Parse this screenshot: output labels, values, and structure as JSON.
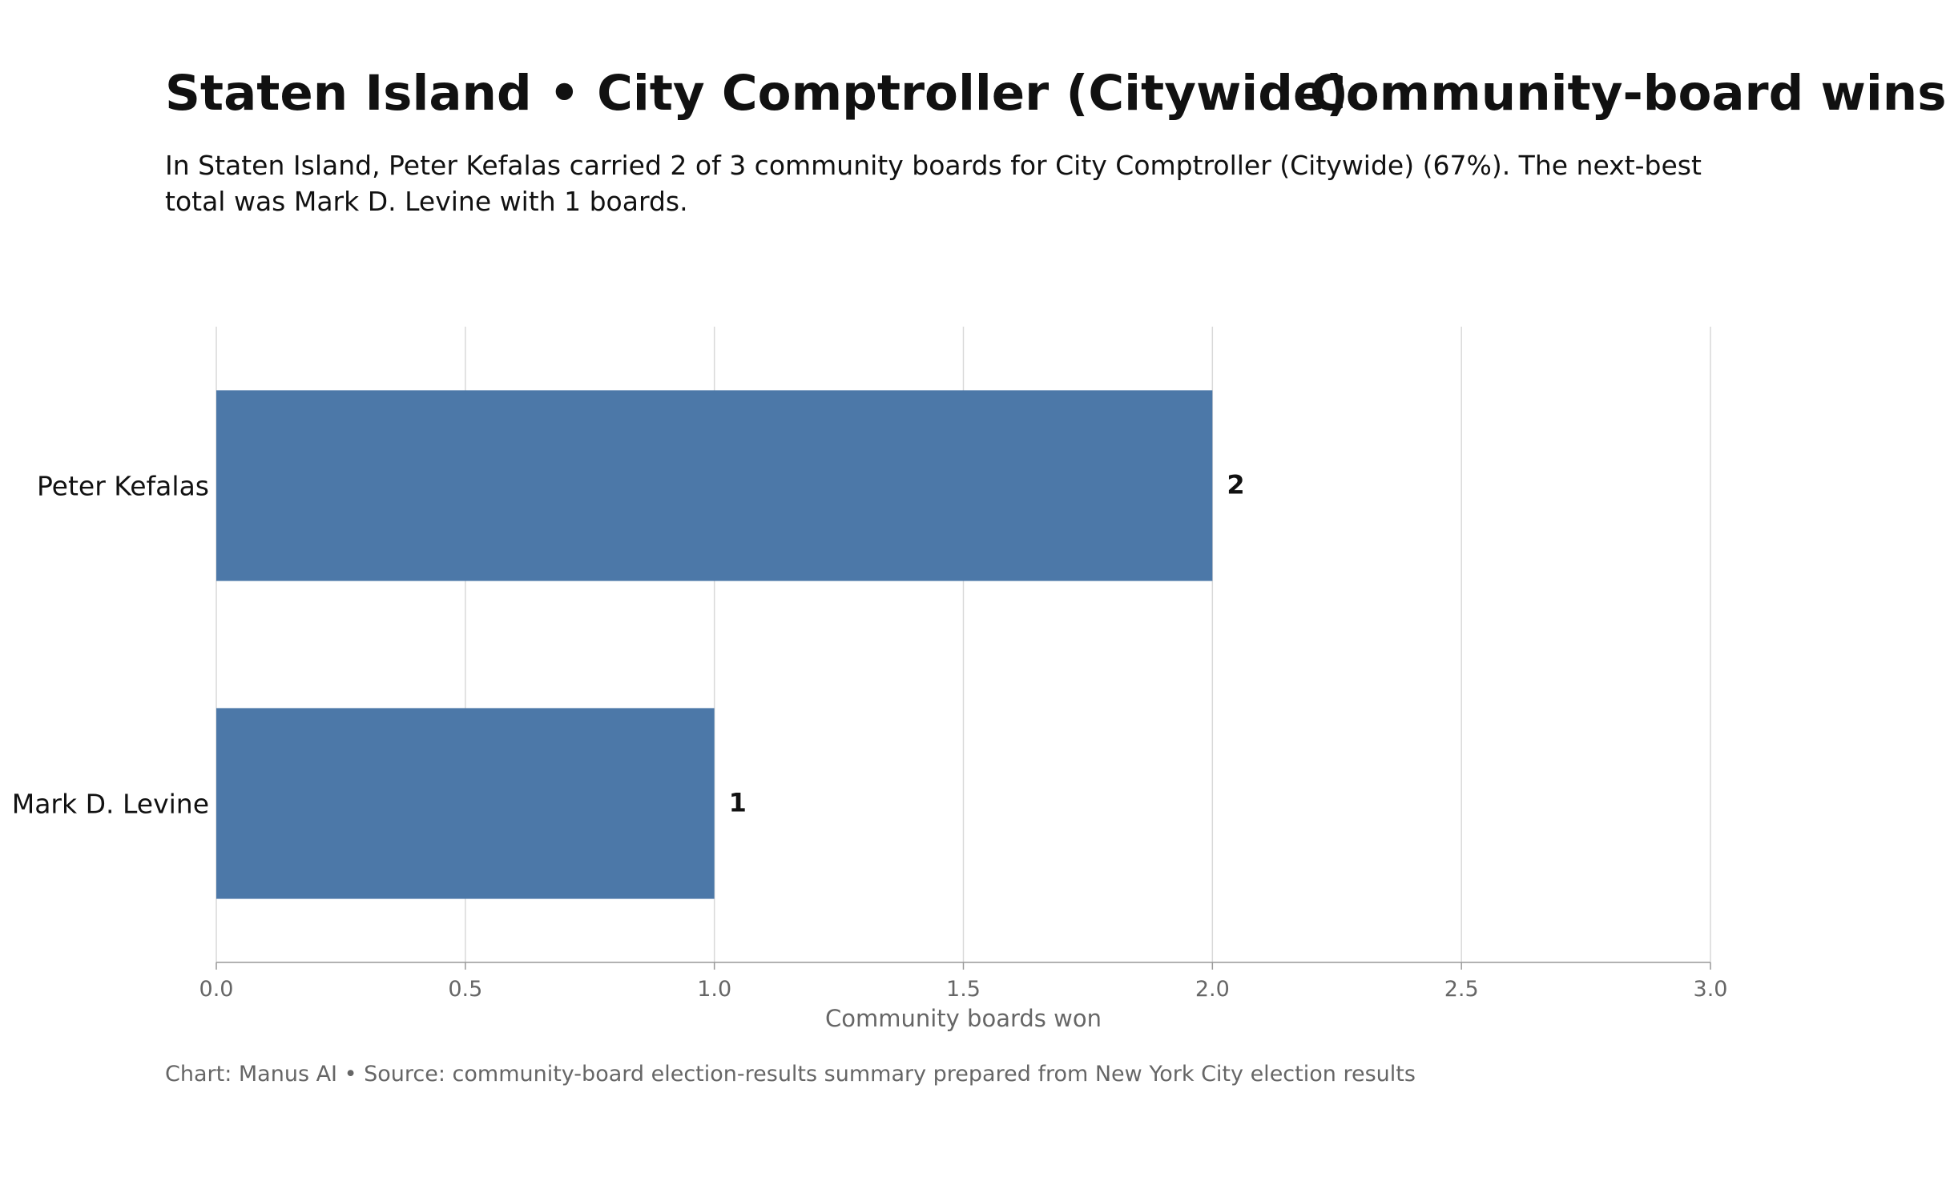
{
  "header": {
    "title_part1": "Staten Island • City Comptroller (Citywide)",
    "title_part2": "Community-board wins",
    "subtitle": "In Staten Island, Peter Kefalas carried 2 of 3 community boards for City Comptroller (Citywide) (67%). The next-best total was Mark D. Levine with 1 boards."
  },
  "footer": {
    "credit": "Chart: Manus AI • Source: community-board election-results summary prepared from New York City election results"
  },
  "colors": {
    "bar": "#4c78a8",
    "grid": "#d9d9d9",
    "axis": "#999999"
  },
  "chart_data": {
    "type": "bar",
    "orientation": "horizontal",
    "categories": [
      "Peter Kefalas",
      "Mark D. Levine"
    ],
    "values": [
      2,
      1
    ],
    "data_labels": [
      "2",
      "1"
    ],
    "xlabel": "Community boards won",
    "ylabel": "",
    "xlim": [
      0,
      3
    ],
    "xticks": [
      0,
      0.5,
      1,
      1.5,
      2,
      2.5,
      3
    ],
    "xtick_labels": [
      "0.0",
      "0.5",
      "1.0",
      "1.5",
      "2.0",
      "2.5",
      "3.0"
    ],
    "grid": true,
    "legend": "none"
  }
}
